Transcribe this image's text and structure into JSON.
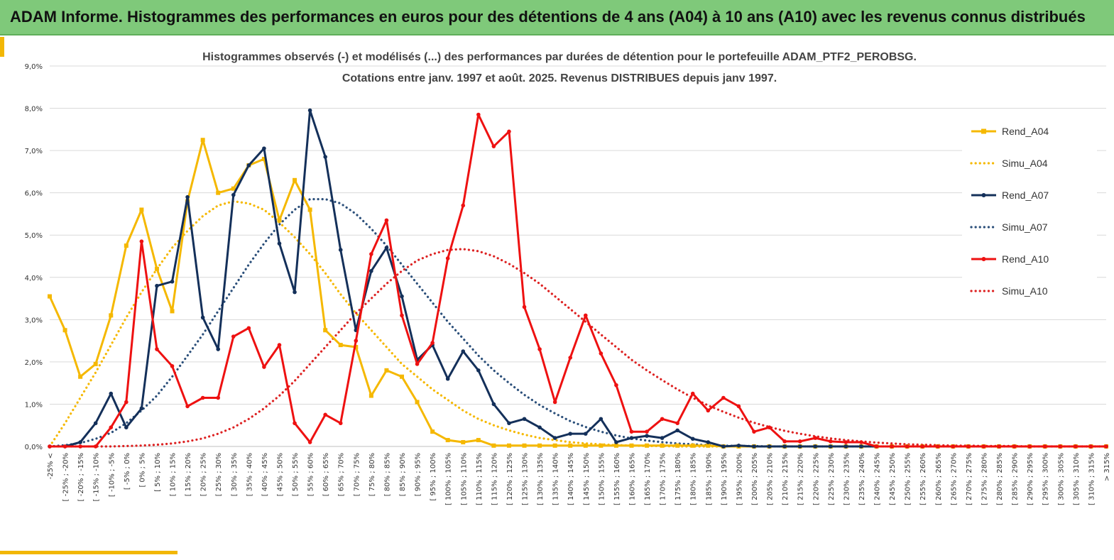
{
  "header": {
    "title": "ADAM Informe. Histogrammes des performances en euros pour des détentions de 4 ans (A04) à 10 ans (A10) avec les revenus connus distribués"
  },
  "colors": {
    "header_bg": "#7fc97a",
    "accent": "#f2b705",
    "A04": "#f5b800",
    "A07": "#14305a",
    "A10": "#ee1111"
  },
  "chart_data": {
    "type": "line",
    "title_lines": [
      "Histogrammes observés (-) et modélisés (...) des performances par durées de détention pour le portefeuille ADAM_PTF2_PEROBSG.",
      "Cotations entre janv. 1997 et août. 2025. Revenus DISTRIBUES depuis janv 1997."
    ],
    "categories": [
      "-25% <",
      "[ -25% ; -20%",
      "[ -20% ; -15%",
      "[ -15% ; -10%",
      "[ -10% ; -5%",
      "[ -5% ; 0%",
      "[ 0% ; 5%",
      "[ 5% ; 10%",
      "[ 10% ; 15%",
      "[ 15% ; 20%",
      "[ 20% ; 25%",
      "[ 25% ; 30%",
      "[ 30% ; 35%",
      "[ 35% ; 40%",
      "[ 40% ; 45%",
      "[ 45% ; 50%",
      "[ 50% ; 55%",
      "[ 55% ; 60%",
      "[ 60% ; 65%",
      "[ 65% ; 70%",
      "[ 70% ; 75%",
      "[ 75% ; 80%",
      "[ 80% ; 85%",
      "[ 85% ; 90%",
      "[ 90% ; 95%",
      "[ 95% ; 100%",
      "[ 100% ; 105%",
      "[ 105% ; 110%",
      "[ 110% ; 115%",
      "[ 115% ; 120%",
      "[ 120% ; 125%",
      "[ 125% ; 130%",
      "[ 130% ; 135%",
      "[ 135% ; 140%",
      "[ 140% ; 145%",
      "[ 145% ; 150%",
      "[ 150% ; 155%",
      "[ 155% ; 160%",
      "[ 160% ; 165%",
      "[ 165% ; 170%",
      "[ 170% ; 175%",
      "[ 175% ; 180%",
      "[ 180% ; 185%",
      "[ 185% ; 190%",
      "[ 190% ; 195%",
      "[ 195% ; 200%",
      "[ 200% ; 205%",
      "[ 205% ; 210%",
      "[ 210% ; 215%",
      "[ 215% ; 220%",
      "[ 220% ; 225%",
      "[ 225% ; 230%",
      "[ 230% ; 235%",
      "[ 235% ; 240%",
      "[ 240% ; 245%",
      "[ 245% ; 250%",
      "[ 250% ; 255%",
      "[ 255% ; 260%",
      "[ 260% ; 265%",
      "[ 265% ; 270%",
      "[ 270% ; 275%",
      "[ 275% ; 280%",
      "[ 280% ; 285%",
      "[ 285% ; 290%",
      "[ 290% ; 295%",
      "[ 295% ; 300%",
      "[ 300% ; 305%",
      "[ 305% ; 310%",
      "[ 310% ; 315%",
      "> 315%"
    ],
    "ylim": [
      0,
      9
    ],
    "yticks": [
      "0,0%",
      "1,0%",
      "2,0%",
      "3,0%",
      "4,0%",
      "5,0%",
      "6,0%",
      "7,0%",
      "8,0%",
      "9,0%"
    ],
    "grid": "horizontal",
    "legend_position": "right",
    "series": [
      {
        "name": "Rend_A04",
        "style": "solid",
        "marker": "square",
        "color": "#f5b800",
        "values": [
          3.55,
          2.75,
          1.65,
          1.95,
          3.1,
          4.75,
          5.6,
          4.2,
          3.2,
          5.8,
          7.25,
          6.0,
          6.1,
          6.65,
          6.8,
          5.35,
          6.3,
          5.6,
          2.75,
          2.4,
          2.35,
          1.2,
          1.8,
          1.65,
          1.05,
          0.35,
          0.15,
          0.1,
          0.15,
          0.02,
          0.02,
          0.02,
          0.02,
          0.02,
          0.02,
          0.02,
          0.02,
          0.02,
          0.02,
          0.02,
          0.02,
          0.02,
          0.02,
          0.02,
          0.0,
          0.0,
          0.0,
          0.0,
          0.0,
          0.0,
          0.0,
          0.0,
          0.0,
          0.0,
          0.0,
          0.0,
          0.0,
          0.0,
          0.0,
          0.0,
          0.0,
          0.0,
          0.0,
          0.0,
          0.0,
          0.0,
          0.0,
          0.0,
          0.0,
          0.0
        ]
      },
      {
        "name": "Simu_A04",
        "style": "dotted",
        "color": "#f5b800",
        "values": [
          0.0,
          0.55,
          1.15,
          1.75,
          2.4,
          3.05,
          3.65,
          4.2,
          4.7,
          5.1,
          5.45,
          5.7,
          5.8,
          5.75,
          5.6,
          5.3,
          4.95,
          4.55,
          4.1,
          3.6,
          3.15,
          2.75,
          2.35,
          1.95,
          1.65,
          1.35,
          1.1,
          0.85,
          0.65,
          0.5,
          0.38,
          0.28,
          0.2,
          0.15,
          0.1,
          0.07,
          0.05,
          0.03,
          0.02,
          0.01,
          0.01,
          0.0,
          0.0,
          0.0,
          0.0,
          0.0,
          0.0,
          0.0,
          0.0,
          0.0,
          0.0,
          0.0,
          0.0,
          0.0,
          0.0,
          0.0,
          0.0,
          0.0,
          0.0,
          0.0,
          0.0,
          0.0,
          0.0,
          0.0,
          0.0,
          0.0,
          0.0,
          0.0,
          0.0,
          0.0
        ]
      },
      {
        "name": "Rend_A07",
        "style": "solid",
        "marker": "circle",
        "color": "#14305a",
        "values": [
          0.0,
          0.0,
          0.1,
          0.55,
          1.25,
          0.45,
          0.9,
          3.8,
          3.9,
          5.9,
          3.05,
          2.3,
          5.95,
          6.65,
          7.05,
          4.8,
          3.65,
          7.95,
          6.85,
          4.65,
          2.75,
          4.15,
          4.7,
          3.55,
          2.05,
          2.4,
          1.6,
          2.25,
          1.8,
          1.0,
          0.55,
          0.65,
          0.45,
          0.2,
          0.3,
          0.3,
          0.65,
          0.1,
          0.2,
          0.25,
          0.2,
          0.38,
          0.18,
          0.1,
          0.0,
          0.02,
          0.0,
          0.0,
          0.0,
          0.0,
          0.0,
          0.0,
          0.0,
          0.0,
          0.0,
          0.0,
          0.0,
          0.0,
          0.0,
          0.0,
          0.0,
          0.0,
          0.0,
          0.0,
          0.0,
          0.0,
          0.0,
          0.0,
          0.0,
          0.0
        ]
      },
      {
        "name": "Simu_A07",
        "style": "dotted",
        "color": "#2b4f7a",
        "values": [
          0.0,
          0.03,
          0.08,
          0.18,
          0.32,
          0.55,
          0.85,
          1.2,
          1.65,
          2.15,
          2.65,
          3.2,
          3.75,
          4.3,
          4.8,
          5.25,
          5.6,
          5.85,
          5.85,
          5.75,
          5.5,
          5.15,
          4.75,
          4.3,
          3.85,
          3.4,
          2.95,
          2.55,
          2.15,
          1.8,
          1.5,
          1.22,
          0.98,
          0.78,
          0.6,
          0.46,
          0.35,
          0.26,
          0.19,
          0.14,
          0.1,
          0.07,
          0.05,
          0.03,
          0.02,
          0.01,
          0.01,
          0.0,
          0.0,
          0.0,
          0.0,
          0.0,
          0.0,
          0.0,
          0.0,
          0.0,
          0.0,
          0.0,
          0.0,
          0.0,
          0.0,
          0.0,
          0.0,
          0.0,
          0.0,
          0.0,
          0.0,
          0.0,
          0.0,
          0.0
        ]
      },
      {
        "name": "Rend_A10",
        "style": "solid",
        "marker": "circle",
        "color": "#ee1111",
        "values": [
          0.0,
          0.0,
          0.0,
          0.0,
          0.45,
          1.05,
          4.85,
          2.3,
          1.9,
          0.95,
          1.15,
          1.15,
          2.6,
          2.8,
          1.88,
          2.4,
          0.55,
          0.1,
          0.75,
          0.55,
          2.5,
          4.55,
          5.35,
          3.1,
          1.95,
          2.45,
          4.45,
          5.7,
          7.85,
          7.1,
          7.45,
          3.3,
          2.3,
          1.05,
          2.1,
          3.1,
          2.2,
          1.45,
          0.35,
          0.35,
          0.65,
          0.55,
          1.25,
          0.85,
          1.15,
          0.95,
          0.35,
          0.45,
          0.12,
          0.12,
          0.2,
          0.12,
          0.1,
          0.1,
          0.0,
          0.0,
          0.0,
          0.0,
          0.0,
          0.0,
          0.0,
          0.0,
          0.0,
          0.0,
          0.0,
          0.0,
          0.0,
          0.0,
          0.0,
          0.0
        ]
      },
      {
        "name": "Simu_A10",
        "style": "dotted",
        "color": "#dd2222",
        "values": [
          0.0,
          0.0,
          0.0,
          0.0,
          0.0,
          0.01,
          0.02,
          0.04,
          0.07,
          0.12,
          0.19,
          0.3,
          0.45,
          0.65,
          0.9,
          1.2,
          1.55,
          1.95,
          2.35,
          2.75,
          3.15,
          3.5,
          3.85,
          4.15,
          4.4,
          4.55,
          4.65,
          4.67,
          4.62,
          4.5,
          4.32,
          4.1,
          3.85,
          3.55,
          3.25,
          2.95,
          2.65,
          2.35,
          2.05,
          1.8,
          1.57,
          1.35,
          1.15,
          0.97,
          0.82,
          0.68,
          0.56,
          0.46,
          0.37,
          0.3,
          0.24,
          0.19,
          0.15,
          0.12,
          0.09,
          0.07,
          0.05,
          0.04,
          0.03,
          0.02,
          0.02,
          0.01,
          0.01,
          0.01,
          0.0,
          0.0,
          0.0,
          0.0,
          0.0,
          0.0
        ]
      }
    ]
  }
}
